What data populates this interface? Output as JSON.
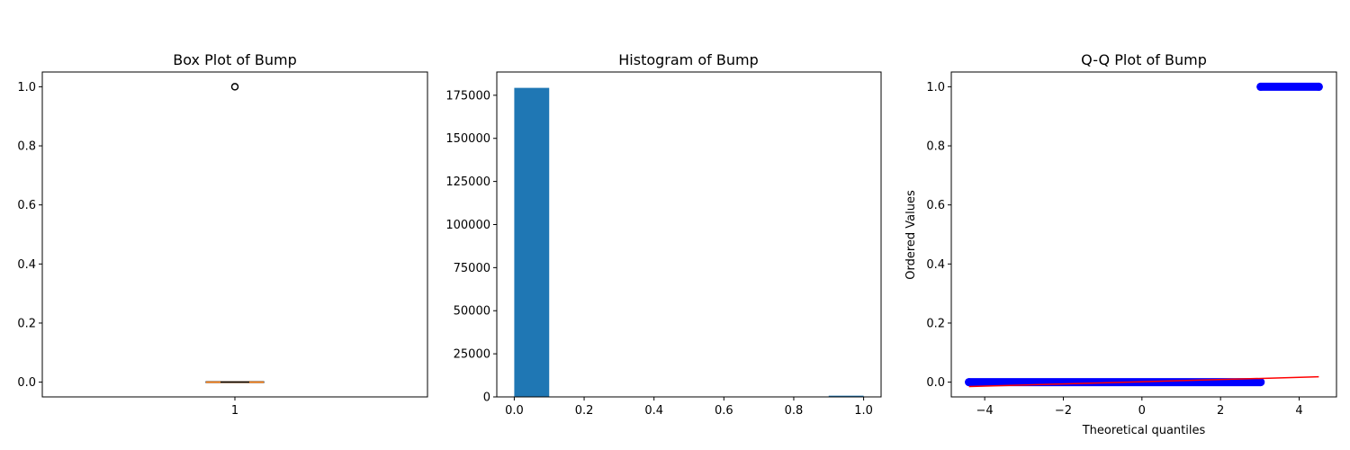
{
  "chart_data": [
    {
      "type": "box",
      "title": "Box Plot of Bump",
      "xlabel": "",
      "ylabel": "",
      "categories": [
        "1"
      ],
      "box": {
        "q1": 0,
        "median": 0,
        "q3": 0,
        "whisker_low": 0,
        "whisker_high": 0,
        "outliers": [
          1.0
        ]
      },
      "ylim": [
        -0.05,
        1.05
      ],
      "yticks": [
        0.0,
        0.2,
        0.4,
        0.6,
        0.8,
        1.0
      ],
      "ytick_labels": [
        "0.0",
        "0.2",
        "0.4",
        "0.6",
        "0.8",
        "1.0"
      ],
      "colors": {
        "box": "#000000",
        "median": "#ff7f0e"
      }
    },
    {
      "type": "bar",
      "title": "Histogram of Bump",
      "xlabel": "",
      "ylabel": "",
      "bin_edges": [
        0.0,
        0.1,
        0.2,
        0.3,
        0.4,
        0.5,
        0.6,
        0.7,
        0.8,
        0.9,
        1.0
      ],
      "values": [
        179300,
        0,
        0,
        0,
        0,
        0,
        0,
        0,
        0,
        700
      ],
      "xlim": [
        -0.05,
        1.05
      ],
      "ylim": [
        0,
        188500
      ],
      "xticks": [
        0.0,
        0.2,
        0.4,
        0.6,
        0.8,
        1.0
      ],
      "xtick_labels": [
        "0.0",
        "0.2",
        "0.4",
        "0.6",
        "0.8",
        "1.0"
      ],
      "yticks": [
        0,
        25000,
        50000,
        75000,
        100000,
        125000,
        150000,
        175000
      ],
      "ytick_labels": [
        "0",
        "25000",
        "50000",
        "75000",
        "100000",
        "125000",
        "150000",
        "175000"
      ],
      "colors": {
        "bar": "#1f77b4"
      }
    },
    {
      "type": "scatter",
      "title": "Q-Q Plot of Bump",
      "xlabel": "Theoretical quantiles",
      "ylabel": "Ordered Values",
      "series": [
        {
          "values_y": 0,
          "x_range": [
            -4.4,
            3.02
          ]
        },
        {
          "values_y": 1,
          "x_range": [
            3.02,
            4.5
          ]
        }
      ],
      "fit_line": {
        "x": [
          -4.4,
          4.5
        ],
        "y": [
          -0.015,
          0.018
        ]
      },
      "xlim": [
        -4.85,
        4.95
      ],
      "ylim": [
        -0.05,
        1.05
      ],
      "xticks": [
        -4,
        -2,
        0,
        2,
        4
      ],
      "xtick_labels": [
        "−4",
        "−2",
        "0",
        "2",
        "4"
      ],
      "yticks": [
        0.0,
        0.2,
        0.4,
        0.6,
        0.8,
        1.0
      ],
      "ytick_labels": [
        "0.0",
        "0.2",
        "0.4",
        "0.6",
        "0.8",
        "1.0"
      ],
      "colors": {
        "points": "#0000ff",
        "line": "#ff0000"
      }
    }
  ]
}
